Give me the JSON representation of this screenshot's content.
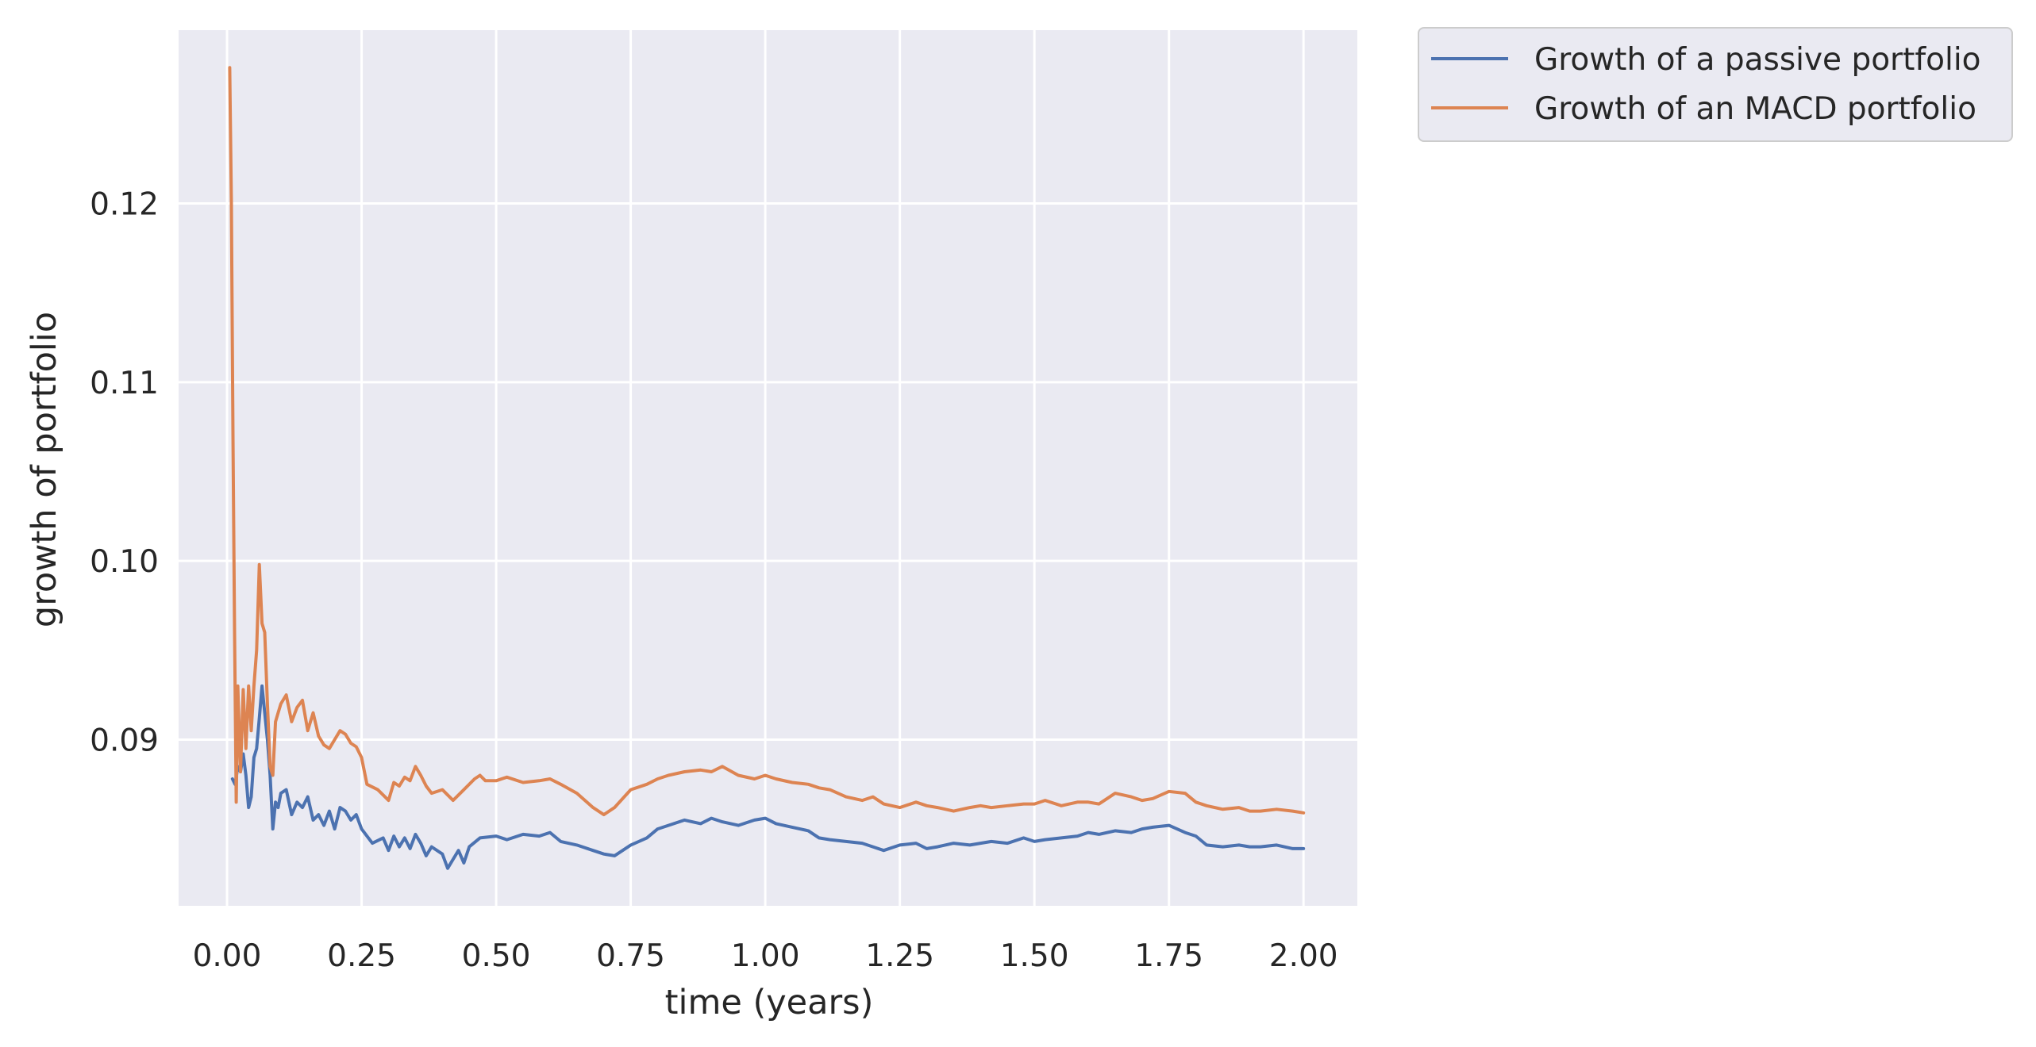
{
  "chart_data": {
    "type": "line",
    "xlabel": "time (years)",
    "ylabel": "growth of portfolio",
    "xlim": [
      -0.09,
      2.1
    ],
    "ylim": [
      0.0807,
      0.1297
    ],
    "xticks": [
      0.0,
      0.25,
      0.5,
      0.75,
      1.0,
      1.25,
      1.5,
      1.75,
      2.0
    ],
    "xtick_labels": [
      "0.00",
      "0.25",
      "0.50",
      "0.75",
      "1.00",
      "1.25",
      "1.50",
      "1.75",
      "2.00"
    ],
    "yticks": [
      0.09,
      0.1,
      0.11,
      0.12
    ],
    "ytick_labels": [
      "0.09",
      "0.10",
      "0.11",
      "0.12"
    ],
    "grid": true,
    "legend_position": "outside-top-right",
    "colors": {
      "plot_background": "#EAEAF2",
      "grid": "#FFFFFF",
      "text": "#262626"
    },
    "series": [
      {
        "name": "Growth of a passive portfolio",
        "color": "#4C72B0",
        "x": [
          0.01,
          0.015,
          0.02,
          0.025,
          0.03,
          0.035,
          0.04,
          0.045,
          0.05,
          0.055,
          0.06,
          0.065,
          0.07,
          0.075,
          0.08,
          0.085,
          0.09,
          0.095,
          0.1,
          0.11,
          0.12,
          0.13,
          0.14,
          0.15,
          0.16,
          0.17,
          0.18,
          0.19,
          0.2,
          0.21,
          0.22,
          0.23,
          0.24,
          0.25,
          0.27,
          0.29,
          0.3,
          0.31,
          0.32,
          0.33,
          0.34,
          0.35,
          0.36,
          0.37,
          0.38,
          0.4,
          0.41,
          0.42,
          0.43,
          0.44,
          0.45,
          0.47,
          0.5,
          0.52,
          0.55,
          0.58,
          0.6,
          0.62,
          0.65,
          0.68,
          0.7,
          0.72,
          0.75,
          0.78,
          0.8,
          0.82,
          0.85,
          0.88,
          0.9,
          0.92,
          0.95,
          0.98,
          1.0,
          1.02,
          1.05,
          1.08,
          1.1,
          1.12,
          1.15,
          1.18,
          1.2,
          1.22,
          1.25,
          1.28,
          1.3,
          1.32,
          1.35,
          1.38,
          1.4,
          1.42,
          1.45,
          1.48,
          1.5,
          1.52,
          1.55,
          1.58,
          1.6,
          1.62,
          1.65,
          1.68,
          1.7,
          1.72,
          1.75,
          1.78,
          1.8,
          1.82,
          1.85,
          1.88,
          1.9,
          1.92,
          1.95,
          1.98,
          2.0
        ],
        "y": [
          0.0878,
          0.0875,
          0.0885,
          0.0882,
          0.0892,
          0.088,
          0.0862,
          0.0868,
          0.089,
          0.0895,
          0.0912,
          0.093,
          0.0915,
          0.09,
          0.088,
          0.085,
          0.0865,
          0.0862,
          0.087,
          0.0872,
          0.0858,
          0.0865,
          0.0862,
          0.0868,
          0.0855,
          0.0858,
          0.0852,
          0.086,
          0.085,
          0.0862,
          0.086,
          0.0855,
          0.0858,
          0.085,
          0.0842,
          0.0845,
          0.0838,
          0.0846,
          0.084,
          0.0845,
          0.0839,
          0.0847,
          0.0842,
          0.0835,
          0.084,
          0.0836,
          0.0828,
          0.0833,
          0.0838,
          0.0831,
          0.084,
          0.0845,
          0.0846,
          0.0844,
          0.0847,
          0.0846,
          0.0848,
          0.0843,
          0.0841,
          0.0838,
          0.0836,
          0.0835,
          0.0841,
          0.0845,
          0.085,
          0.0852,
          0.0855,
          0.0853,
          0.0856,
          0.0854,
          0.0852,
          0.0855,
          0.0856,
          0.0853,
          0.0851,
          0.0849,
          0.0845,
          0.0844,
          0.0843,
          0.0842,
          0.084,
          0.0838,
          0.0841,
          0.0842,
          0.0839,
          0.084,
          0.0842,
          0.0841,
          0.0842,
          0.0843,
          0.0842,
          0.0845,
          0.0843,
          0.0844,
          0.0845,
          0.0846,
          0.0848,
          0.0847,
          0.0849,
          0.0848,
          0.085,
          0.0851,
          0.0852,
          0.0848,
          0.0846,
          0.0841,
          0.084,
          0.0841,
          0.084,
          0.084,
          0.0841,
          0.0839,
          0.0839
        ]
      },
      {
        "name": "Growth of an MACD portfolio",
        "color": "#DD8452",
        "x": [
          0.005,
          0.008,
          0.011,
          0.014,
          0.017,
          0.02,
          0.025,
          0.03,
          0.035,
          0.04,
          0.045,
          0.05,
          0.055,
          0.06,
          0.065,
          0.07,
          0.075,
          0.08,
          0.085,
          0.09,
          0.095,
          0.1,
          0.11,
          0.12,
          0.13,
          0.14,
          0.15,
          0.16,
          0.17,
          0.18,
          0.19,
          0.2,
          0.21,
          0.22,
          0.23,
          0.24,
          0.25,
          0.26,
          0.28,
          0.3,
          0.31,
          0.32,
          0.33,
          0.34,
          0.35,
          0.36,
          0.37,
          0.38,
          0.4,
          0.42,
          0.44,
          0.46,
          0.47,
          0.48,
          0.5,
          0.52,
          0.55,
          0.58,
          0.6,
          0.62,
          0.65,
          0.68,
          0.7,
          0.72,
          0.75,
          0.78,
          0.8,
          0.82,
          0.85,
          0.88,
          0.9,
          0.92,
          0.95,
          0.98,
          1.0,
          1.02,
          1.05,
          1.08,
          1.1,
          1.12,
          1.15,
          1.18,
          1.2,
          1.22,
          1.25,
          1.28,
          1.3,
          1.32,
          1.35,
          1.38,
          1.4,
          1.42,
          1.45,
          1.48,
          1.5,
          1.52,
          1.55,
          1.58,
          1.6,
          1.62,
          1.65,
          1.68,
          1.7,
          1.72,
          1.75,
          1.78,
          1.8,
          1.82,
          1.85,
          1.88,
          1.9,
          1.92,
          1.95,
          1.98,
          2.0
        ],
        "y": [
          0.1276,
          0.12,
          0.107,
          0.096,
          0.0865,
          0.093,
          0.0882,
          0.0928,
          0.0895,
          0.093,
          0.0905,
          0.093,
          0.095,
          0.0998,
          0.0965,
          0.096,
          0.092,
          0.0885,
          0.088,
          0.091,
          0.0915,
          0.092,
          0.0925,
          0.091,
          0.0918,
          0.0922,
          0.0905,
          0.0915,
          0.0902,
          0.0897,
          0.0895,
          0.09,
          0.0905,
          0.0903,
          0.0898,
          0.0896,
          0.089,
          0.0875,
          0.0872,
          0.0866,
          0.0876,
          0.0874,
          0.0879,
          0.0877,
          0.0885,
          0.088,
          0.0874,
          0.087,
          0.0872,
          0.0866,
          0.0872,
          0.0878,
          0.088,
          0.0877,
          0.0877,
          0.0879,
          0.0876,
          0.0877,
          0.0878,
          0.0875,
          0.087,
          0.0862,
          0.0858,
          0.0862,
          0.0872,
          0.0875,
          0.0878,
          0.088,
          0.0882,
          0.0883,
          0.0882,
          0.0885,
          0.088,
          0.0878,
          0.088,
          0.0878,
          0.0876,
          0.0875,
          0.0873,
          0.0872,
          0.0868,
          0.0866,
          0.0868,
          0.0864,
          0.0862,
          0.0865,
          0.0863,
          0.0862,
          0.086,
          0.0862,
          0.0863,
          0.0862,
          0.0863,
          0.0864,
          0.0864,
          0.0866,
          0.0863,
          0.0865,
          0.0865,
          0.0864,
          0.087,
          0.0868,
          0.0866,
          0.0867,
          0.0871,
          0.087,
          0.0865,
          0.0863,
          0.0861,
          0.0862,
          0.086,
          0.086,
          0.0861,
          0.086,
          0.0859
        ]
      }
    ]
  }
}
